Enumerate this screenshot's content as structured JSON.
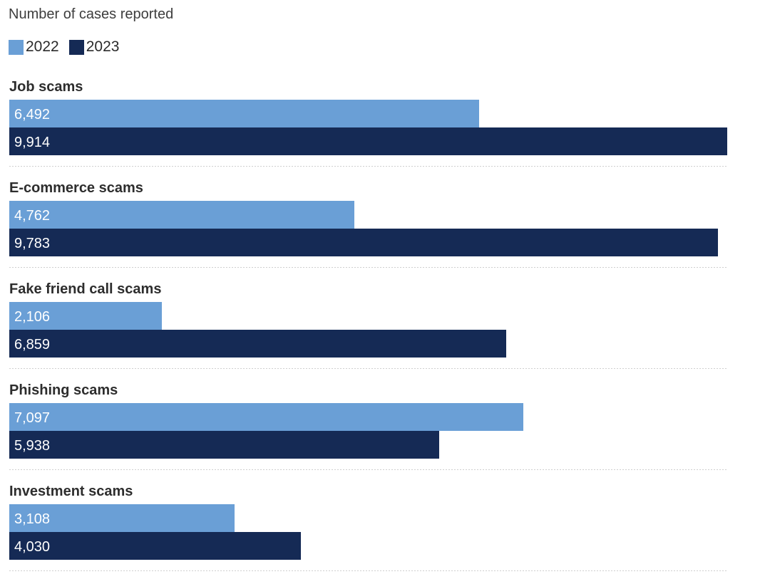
{
  "chart_data": {
    "type": "bar",
    "orientation": "horizontal",
    "subtitle": "Number of cases reported",
    "categories": [
      "Job scams",
      "E-commerce scams",
      "Fake friend call scams",
      "Phishing scams",
      "Investment scams"
    ],
    "series": [
      {
        "name": "2022",
        "color": "#6a9fd6",
        "values": [
          6492,
          4762,
          2106,
          7097,
          3108
        ],
        "labels": [
          "6,492",
          "4,762",
          "2,106",
          "7,097",
          "3,108"
        ]
      },
      {
        "name": "2023",
        "color": "#152a55",
        "values": [
          9914,
          9783,
          6859,
          5938,
          4030
        ],
        "labels": [
          "9,914",
          "9,783",
          "6,859",
          "5,938",
          "4,030"
        ]
      }
    ],
    "xlim": [
      0,
      9914
    ],
    "legend_position": "top-left",
    "grid": false,
    "data_labels": "inside-left"
  }
}
